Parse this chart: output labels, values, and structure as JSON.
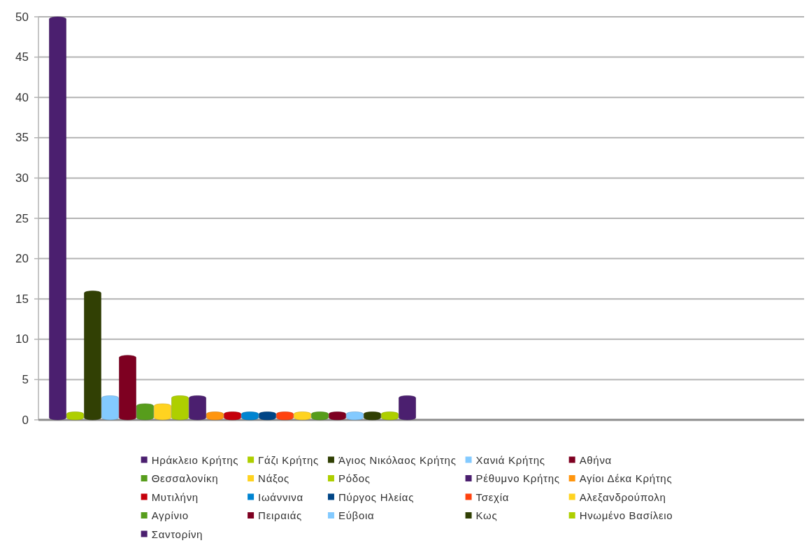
{
  "chart_data": {
    "type": "bar",
    "stacked": true,
    "categories": [
      null,
      null,
      null,
      null,
      null,
      null,
      null,
      null,
      null,
      null,
      null,
      null,
      null,
      null,
      null,
      null,
      null,
      null,
      null,
      null,
      null
    ],
    "series": [
      {
        "name": "Ηράκλειο Κρήτης",
        "color": "#4b1f6f",
        "values": [
          50,
          null,
          null,
          null,
          null,
          null,
          null,
          null,
          null,
          null,
          null,
          null,
          null,
          null,
          null,
          null,
          null,
          null,
          null,
          null,
          null
        ]
      },
      {
        "name": "Γάζι Κρήτης",
        "color": "#aecf00",
        "values": [
          null,
          1,
          null,
          null,
          null,
          null,
          null,
          null,
          null,
          null,
          null,
          null,
          null,
          null,
          null,
          null,
          null,
          null,
          null,
          null,
          null
        ]
      },
      {
        "name": "Άγιος Νικόλαος Κρήτης",
        "color": "#314004",
        "values": [
          null,
          null,
          16,
          null,
          null,
          null,
          null,
          null,
          null,
          null,
          null,
          null,
          null,
          null,
          null,
          null,
          null,
          null,
          null,
          null,
          null
        ]
      },
      {
        "name": "Χανιά Κρήτης",
        "color": "#83caff",
        "values": [
          null,
          null,
          null,
          3,
          null,
          null,
          null,
          null,
          null,
          null,
          null,
          null,
          null,
          null,
          null,
          null,
          null,
          null,
          null,
          null,
          null
        ]
      },
      {
        "name": "Αθήνα",
        "color": "#7e0021",
        "values": [
          null,
          null,
          null,
          null,
          8,
          null,
          null,
          null,
          null,
          null,
          null,
          null,
          null,
          null,
          null,
          null,
          null,
          null,
          null,
          null,
          null
        ]
      },
      {
        "name": "Θεσσαλονίκη",
        "color": "#579d1c",
        "values": [
          null,
          null,
          null,
          null,
          null,
          2,
          null,
          null,
          null,
          null,
          null,
          null,
          null,
          null,
          null,
          null,
          null,
          null,
          null,
          null,
          null
        ]
      },
      {
        "name": "Νάξος",
        "color": "#ffd320",
        "values": [
          null,
          null,
          null,
          null,
          null,
          null,
          2,
          null,
          null,
          null,
          null,
          null,
          null,
          null,
          null,
          null,
          null,
          null,
          null,
          null,
          null
        ]
      },
      {
        "name": "Ρόδος",
        "color": "#aecf00",
        "values": [
          null,
          null,
          null,
          null,
          null,
          null,
          null,
          3,
          null,
          null,
          null,
          null,
          null,
          null,
          null,
          null,
          null,
          null,
          null,
          null,
          null
        ]
      },
      {
        "name": "Ρέθυμνο Κρήτης",
        "color": "#4b1f6f",
        "values": [
          null,
          null,
          null,
          null,
          null,
          null,
          null,
          null,
          3,
          null,
          null,
          null,
          null,
          null,
          null,
          null,
          null,
          null,
          null,
          null,
          null
        ]
      },
      {
        "name": "Αγίοι Δέκα Κρήτης",
        "color": "#ff950e",
        "values": [
          null,
          null,
          null,
          null,
          null,
          null,
          null,
          null,
          null,
          1,
          null,
          null,
          null,
          null,
          null,
          null,
          null,
          null,
          null,
          null,
          null
        ]
      },
      {
        "name": "Μυτιλήνη",
        "color": "#c5000b",
        "values": [
          null,
          null,
          null,
          null,
          null,
          null,
          null,
          null,
          null,
          null,
          1,
          null,
          null,
          null,
          null,
          null,
          null,
          null,
          null,
          null,
          null
        ]
      },
      {
        "name": "Ιωάννινα",
        "color": "#0084d1",
        "values": [
          null,
          null,
          null,
          null,
          null,
          null,
          null,
          null,
          null,
          null,
          null,
          1,
          null,
          null,
          null,
          null,
          null,
          null,
          null,
          null,
          null
        ]
      },
      {
        "name": "Πύργος Ηλείας",
        "color": "#004586",
        "values": [
          null,
          null,
          null,
          null,
          null,
          null,
          null,
          null,
          null,
          null,
          null,
          null,
          1,
          null,
          null,
          null,
          null,
          null,
          null,
          null,
          null
        ]
      },
      {
        "name": "Τσεχία",
        "color": "#ff420e",
        "values": [
          null,
          null,
          null,
          null,
          null,
          null,
          null,
          null,
          null,
          null,
          null,
          null,
          null,
          1,
          null,
          null,
          null,
          null,
          null,
          null,
          null
        ]
      },
      {
        "name": "Αλεξανδρούπολη",
        "color": "#ffd320",
        "values": [
          null,
          null,
          null,
          null,
          null,
          null,
          null,
          null,
          null,
          null,
          null,
          null,
          null,
          null,
          1,
          null,
          null,
          null,
          null,
          null,
          null
        ]
      },
      {
        "name": "Αγρίνιο",
        "color": "#579d1c",
        "values": [
          null,
          null,
          null,
          null,
          null,
          null,
          null,
          null,
          null,
          null,
          null,
          null,
          null,
          null,
          null,
          1,
          null,
          null,
          null,
          null,
          null
        ]
      },
      {
        "name": "Πειραιάς",
        "color": "#7e0021",
        "values": [
          null,
          null,
          null,
          null,
          null,
          null,
          null,
          null,
          null,
          null,
          null,
          null,
          null,
          null,
          null,
          null,
          1,
          null,
          null,
          null,
          null
        ]
      },
      {
        "name": "Εύβοια",
        "color": "#83caff",
        "values": [
          null,
          null,
          null,
          null,
          null,
          null,
          null,
          null,
          null,
          null,
          null,
          null,
          null,
          null,
          null,
          null,
          null,
          1,
          null,
          null,
          null
        ]
      },
      {
        "name": "Κως",
        "color": "#314004",
        "values": [
          null,
          null,
          null,
          null,
          null,
          null,
          null,
          null,
          null,
          null,
          null,
          null,
          null,
          null,
          null,
          null,
          null,
          null,
          1,
          null,
          null
        ]
      },
      {
        "name": "Ηνωμένο Βασίλειο",
        "color": "#aecf00",
        "values": [
          null,
          null,
          null,
          null,
          null,
          null,
          null,
          null,
          null,
          null,
          null,
          null,
          null,
          null,
          null,
          null,
          null,
          null,
          null,
          1,
          null
        ]
      },
      {
        "name": "Σαντορίνη",
        "color": "#4b1f6f",
        "values": [
          null,
          null,
          null,
          null,
          null,
          null,
          null,
          null,
          null,
          null,
          null,
          null,
          null,
          null,
          null,
          null,
          null,
          null,
          null,
          null,
          3
        ]
      }
    ],
    "ylim": [
      0,
      50
    ],
    "yticks": [
      0,
      5,
      10,
      15,
      20,
      25,
      30,
      35,
      40,
      45,
      50
    ],
    "grid": "y",
    "legend": "bottom",
    "tick_labels": "y"
  }
}
